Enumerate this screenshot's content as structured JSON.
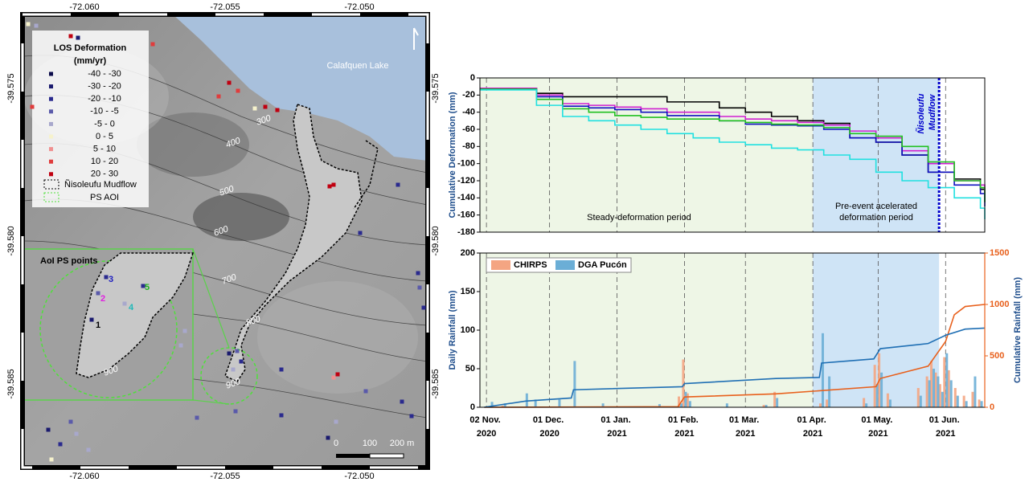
{
  "map": {
    "x_labels": [
      "-72.060",
      "-72.055",
      "-72.050"
    ],
    "y_labels": [
      "-39.575",
      "-39.580",
      "-39.585"
    ],
    "lake_label": "Calafquen Lake",
    "legend_title": [
      "LOS Deformation",
      "(mm/yr)"
    ],
    "legend_items": [
      {
        "label": "-40 - -30",
        "color": "#0b0b4a"
      },
      {
        "label": "-30 - -20",
        "color": "#1a1a6e"
      },
      {
        "label": "-20 - -10",
        "color": "#2a2a8e"
      },
      {
        "label": "-10 - -5",
        "color": "#5a5aaa"
      },
      {
        "label": "-5 - 0",
        "color": "#a8a8cc"
      },
      {
        "label": "0 - 5",
        "color": "#f6f2cc"
      },
      {
        "label": "5 - 10",
        "color": "#f09090"
      },
      {
        "label": "10 - 20",
        "color": "#e03c3c"
      },
      {
        "label": "20 - 30",
        "color": "#c00010"
      }
    ],
    "mudflow_label": "Ñisoleufu Mudflow",
    "aoi_label": "PS AOI",
    "contour_labels": [
      "300",
      "400",
      "500",
      "600",
      "700",
      "800",
      "900",
      "900"
    ],
    "inset_title": "AoI PS points",
    "point_labels": [
      {
        "label": "1",
        "color": "#000000"
      },
      {
        "label": "2",
        "color": "#e020e0"
      },
      {
        "label": "3",
        "color": "#2020c0"
      },
      {
        "label": "4",
        "color": "#20b8b8"
      },
      {
        "label": "5",
        "color": "#20b020"
      }
    ],
    "scale_labels": [
      "0",
      "100",
      "200 m"
    ]
  },
  "chart_data": [
    {
      "type": "line",
      "step": true,
      "x": [
        "2020-10-30",
        "2020-11-25",
        "2020-12-07",
        "2020-12-19",
        "2020-12-31",
        "2021-01-12",
        "2021-01-24",
        "2021-02-05",
        "2021-02-17",
        "2021-03-01",
        "2021-03-13",
        "2021-03-25",
        "2021-04-06",
        "2021-04-18",
        "2021-04-30",
        "2021-05-12",
        "2021-05-24",
        "2021-06-05",
        "2021-06-17",
        "2021-06-19"
      ],
      "xlim": [
        "2020-10-30",
        "2021-06-19"
      ],
      "xticks": [
        "2020-11-02",
        "2020-12-01",
        "2021-01-01",
        "2021-02-01",
        "2021-03-01",
        "2021-04-01",
        "2021-05-01",
        "2021-06-01"
      ],
      "ylim": [
        -180,
        0
      ],
      "yticks": [
        0,
        -20,
        -40,
        -60,
        -80,
        -100,
        -120,
        -140,
        -160,
        -180
      ],
      "ylabel": "Cumulative Deformation (mm)",
      "series": [
        {
          "color": "#000000",
          "values": [
            -12,
            -18,
            -22,
            -22,
            -22,
            -22,
            -28,
            -28,
            -35,
            -40,
            -45,
            -50,
            -53,
            -70,
            -75,
            -90,
            -110,
            -118,
            -130,
            -145
          ]
        },
        {
          "color": "#d020d0",
          "values": [
            -12,
            -20,
            -30,
            -32,
            -34,
            -36,
            -40,
            -40,
            -45,
            -48,
            -50,
            -52,
            -55,
            -62,
            -70,
            -85,
            -100,
            -120,
            -125,
            -140
          ]
        },
        {
          "color": "#1010c0",
          "values": [
            -13,
            -22,
            -33,
            -35,
            -37,
            -40,
            -44,
            -44,
            -50,
            -54,
            -55,
            -56,
            -60,
            -70,
            -75,
            -90,
            -110,
            -125,
            -135,
            -150
          ]
        },
        {
          "color": "#20c020",
          "values": [
            -13,
            -25,
            -36,
            -40,
            -44,
            -46,
            -48,
            -48,
            -50,
            -52,
            -54,
            -55,
            -58,
            -65,
            -68,
            -80,
            -98,
            -120,
            -128,
            -145
          ]
        },
        {
          "color": "#20e0e0",
          "values": [
            -14,
            -32,
            -45,
            -50,
            -55,
            -60,
            -65,
            -70,
            -75,
            -78,
            -82,
            -84,
            -90,
            -95,
            -110,
            -120,
            -128,
            -140,
            -152,
            -165
          ]
        }
      ],
      "shaded_spans": [
        {
          "start": "2020-10-30",
          "end": "2021-04-01",
          "color": "#eef6e6"
        },
        {
          "start": "2021-04-01",
          "end": "2021-05-29",
          "color": "#cfe4f6"
        }
      ],
      "event_line": {
        "x": "2021-05-29",
        "label": "Ñisoleufu Mudflow",
        "color": "#0000cc"
      },
      "annotations": [
        [
          "Steady-deformation period"
        ],
        [
          "Pre-event acelerated",
          "deformation period"
        ]
      ]
    },
    {
      "type": "bar",
      "x": [
        "2020-11-04",
        "2020-11-10",
        "2020-11-20",
        "2020-11-24",
        "2020-12-05",
        "2020-12-12",
        "2020-12-25",
        "2021-01-20",
        "2021-01-30",
        "2021-02-01",
        "2021-02-03",
        "2021-02-20",
        "2021-03-10",
        "2021-03-15",
        "2021-04-05",
        "2021-04-08",
        "2021-04-25",
        "2021-04-30",
        "2021-05-02",
        "2021-05-06",
        "2021-05-20",
        "2021-05-24",
        "2021-05-26",
        "2021-05-28",
        "2021-05-30",
        "2021-06-01",
        "2021-06-03",
        "2021-06-06",
        "2021-06-10",
        "2021-06-14",
        "2021-06-17"
      ],
      "xlim": [
        "2020-10-30",
        "2021-06-19"
      ],
      "xticks": [
        {
          "value": "2020-11-02",
          "label": "02 Nov. 2020"
        },
        {
          "value": "2020-12-01",
          "label": "01 Dec. 2020"
        },
        {
          "value": "2021-01-01",
          "label": "01 Jan. 2021"
        },
        {
          "value": "2021-02-01",
          "label": "01 Feb. 2021"
        },
        {
          "value": "2021-03-01",
          "label": "01 Mar. 2021"
        },
        {
          "value": "2021-04-01",
          "label": "01 Apr. 2021"
        },
        {
          "value": "2021-05-01",
          "label": "01 May. 2021"
        },
        {
          "value": "2021-06-01",
          "label": "01 Jun. 2021"
        }
      ],
      "ylim": [
        0,
        200
      ],
      "yticks": [
        0,
        50,
        100,
        150,
        200
      ],
      "y2lim": [
        0,
        1500
      ],
      "y2ticks": [
        0,
        500,
        1000,
        1500
      ],
      "y2color": "#e8601c",
      "ylabel": "Daily Rainfall (mm)",
      "y2label": "Cumulative Rainfall (mm)",
      "legend": "upper left",
      "series": [
        {
          "name": "CHIRPS",
          "color": "#f4a582",
          "values": [
            0,
            2,
            0,
            0,
            0,
            0,
            0,
            0,
            14,
            62,
            18,
            0,
            3,
            20,
            5,
            10,
            12,
            55,
            70,
            18,
            25,
            40,
            60,
            45,
            30,
            65,
            48,
            25,
            15,
            20,
            10
          ]
        },
        {
          "name": "DGA Pucón",
          "color": "#6baed6",
          "values": [
            7,
            5,
            18,
            10,
            10,
            60,
            5,
            4,
            5,
            20,
            8,
            5,
            3,
            12,
            96,
            40,
            5,
            30,
            45,
            10,
            15,
            35,
            50,
            40,
            20,
            70,
            35,
            15,
            8,
            40,
            8
          ]
        },
        {
          "type": "line",
          "axis": "y2",
          "color": "#e8601c",
          "x": [
            "2020-11-01",
            "2021-01-29",
            "2021-02-01",
            "2021-03-15",
            "2021-04-30",
            "2021-05-02",
            "2021-05-24",
            "2021-06-01",
            "2021-06-05",
            "2021-06-10",
            "2021-06-19"
          ],
          "values": [
            0,
            5,
            100,
            130,
            200,
            280,
            400,
            640,
            900,
            980,
            1000
          ]
        },
        {
          "type": "line",
          "axis": "y2",
          "color": "#1f6fb4",
          "x": [
            "2020-11-01",
            "2020-11-20",
            "2020-12-11",
            "2020-12-12",
            "2021-01-31",
            "2021-02-01",
            "2021-03-15",
            "2021-04-04",
            "2021-04-05",
            "2021-04-29",
            "2021-05-02",
            "2021-05-24",
            "2021-06-01",
            "2021-06-10",
            "2021-06-19"
          ],
          "values": [
            0,
            60,
            90,
            170,
            200,
            230,
            280,
            290,
            430,
            470,
            570,
            620,
            700,
            760,
            770
          ]
        }
      ],
      "shaded_spans": [
        {
          "start": "2020-10-30",
          "end": "2021-04-01",
          "color": "#eef6e6"
        },
        {
          "start": "2021-04-01",
          "end": "2021-05-29",
          "color": "#cfe4f6"
        }
      ]
    }
  ]
}
